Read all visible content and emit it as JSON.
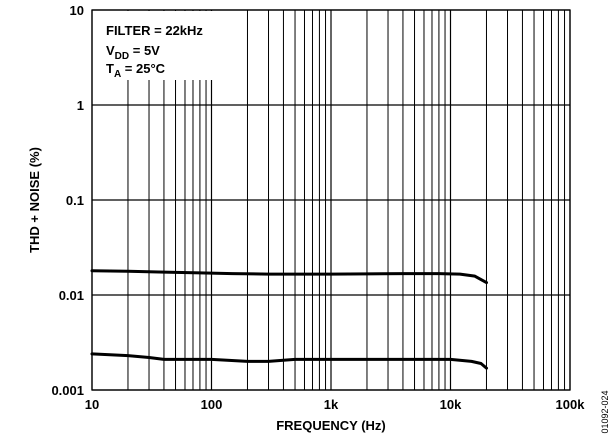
{
  "chart_data": {
    "type": "line",
    "title": "",
    "xlabel": "FREQUENCY (Hz)",
    "ylabel": "THD + NOISE (%)",
    "xscale": "log",
    "yscale": "log",
    "xlim": [
      10,
      100000
    ],
    "ylim": [
      0.001,
      10
    ],
    "grid": true,
    "x_ticks": [
      {
        "value": 10,
        "label": "10"
      },
      {
        "value": 100,
        "label": "100"
      },
      {
        "value": 1000,
        "label": "1k"
      },
      {
        "value": 10000,
        "label": "10k"
      },
      {
        "value": 100000,
        "label": "100k"
      }
    ],
    "y_ticks": [
      {
        "value": 10,
        "label": "10"
      },
      {
        "value": 1,
        "label": "1"
      },
      {
        "value": 0.1,
        "label": "0.1"
      },
      {
        "value": 0.01,
        "label": "0.01"
      },
      {
        "value": 0.001,
        "label": "0.001"
      }
    ],
    "annotation": {
      "line1": "FILTER = 22kHz",
      "line2_main": "V",
      "line2_sub": "DD",
      "line2_rest": " = 5V",
      "line3_main": "T",
      "line3_sub": "A",
      "line3_rest": " = 25°C"
    },
    "figure_id": "01092-024",
    "series": [
      {
        "x": [
          10,
          20,
          40,
          80,
          150,
          300,
          600,
          1000,
          2000,
          4000,
          8000,
          12000,
          16000,
          20000
        ],
        "y": [
          0.018,
          0.0178,
          0.0174,
          0.0171,
          0.0168,
          0.0166,
          0.0166,
          0.0166,
          0.0167,
          0.0168,
          0.0168,
          0.0166,
          0.0158,
          0.0135
        ]
      },
      {
        "x": [
          10,
          20,
          30,
          40,
          60,
          100,
          200,
          300,
          500,
          1000,
          2000,
          5000,
          10000,
          15000,
          18000,
          20000
        ],
        "y": [
          0.0024,
          0.0023,
          0.0022,
          0.0021,
          0.0021,
          0.0021,
          0.002,
          0.002,
          0.0021,
          0.0021,
          0.0021,
          0.0021,
          0.0021,
          0.002,
          0.0019,
          0.0017
        ]
      }
    ]
  }
}
